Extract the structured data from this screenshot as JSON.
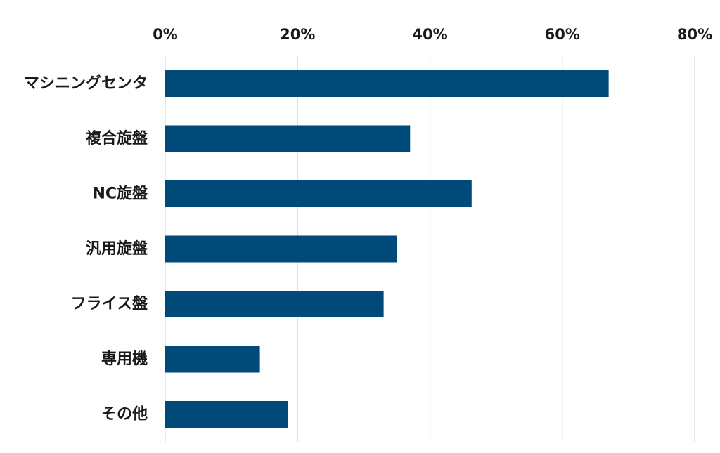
{
  "chart_data": {
    "type": "bar",
    "orientation": "horizontal",
    "title": "",
    "xlabel": "",
    "ylabel": "",
    "categories": [
      "マシニングセンタ",
      "複合旋盤",
      "NC旋盤",
      "汎用旋盤",
      "フライス盤",
      "専用機",
      "その他"
    ],
    "values": [
      0.67,
      0.37,
      0.463,
      0.35,
      0.33,
      0.143,
      0.185
    ],
    "xlim": [
      0,
      0.8
    ],
    "ticks": [
      0,
      0.2,
      0.4,
      0.6,
      0.8
    ],
    "tick_labels": [
      "0%",
      "20%",
      "40%",
      "60%",
      "80%"
    ],
    "tick_position": "top",
    "grid": true,
    "legend": "none",
    "bar_color": "#004a7a",
    "grid_color": "#d9d9d9"
  }
}
